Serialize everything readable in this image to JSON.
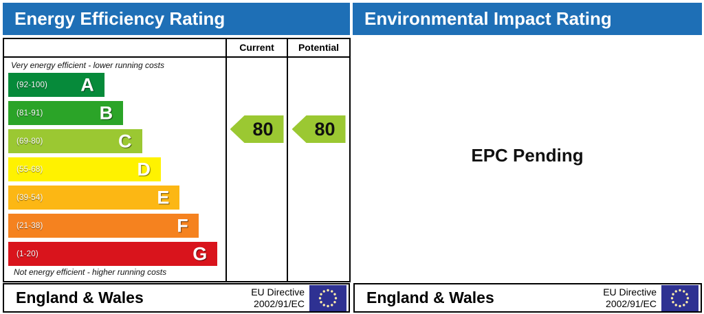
{
  "left_panel": {
    "title": "Energy Efficiency Rating",
    "header_columns": [
      "Current",
      "Potential"
    ],
    "top_note": "Very energy efficient - lower running costs",
    "bottom_note": "Not energy efficient - higher running costs",
    "footer": {
      "region": "England & Wales",
      "directive": [
        "EU Directive",
        "2002/91/EC"
      ]
    }
  },
  "right_panel": {
    "title": "Environmental Impact Rating",
    "status_text": "EPC Pending",
    "footer": {
      "region": "England & Wales",
      "directive": [
        "EU Directive",
        "2002/91/EC"
      ]
    }
  },
  "chart_data": {
    "type": "bar",
    "title": "Energy Efficiency Rating",
    "categories": [
      "A",
      "B",
      "C",
      "D",
      "E",
      "F",
      "G"
    ],
    "bands": [
      {
        "letter": "A",
        "range_label": "(92-100)",
        "min": 92,
        "max": 100,
        "color": "#068a3a"
      },
      {
        "letter": "B",
        "range_label": "(81-91)",
        "min": 81,
        "max": 91,
        "color": "#2ba428"
      },
      {
        "letter": "C",
        "range_label": "(69-80)",
        "min": 69,
        "max": 80,
        "color": "#9bc832"
      },
      {
        "letter": "D",
        "range_label": "(55-68)",
        "min": 55,
        "max": 68,
        "color": "#fff200"
      },
      {
        "letter": "E",
        "range_label": "(39-54)",
        "min": 39,
        "max": 54,
        "color": "#fcb714"
      },
      {
        "letter": "F",
        "range_label": "(21-38)",
        "min": 21,
        "max": 38,
        "color": "#f5821f"
      },
      {
        "letter": "G",
        "range_label": "(1-20)",
        "min": 1,
        "max": 20,
        "color": "#d9141c"
      }
    ],
    "current": {
      "label": "Current",
      "value": 80,
      "band": "C",
      "color": "#9bc832"
    },
    "potential": {
      "label": "Potential",
      "value": 80,
      "band": "C",
      "color": "#9bc832"
    },
    "environmental_impact": {
      "status": "EPC Pending"
    }
  },
  "colors": {
    "header_blue": "#1e6fb6",
    "eu_flag_blue": "#2e3192",
    "eu_flag_stars": "#ffeeaa"
  }
}
